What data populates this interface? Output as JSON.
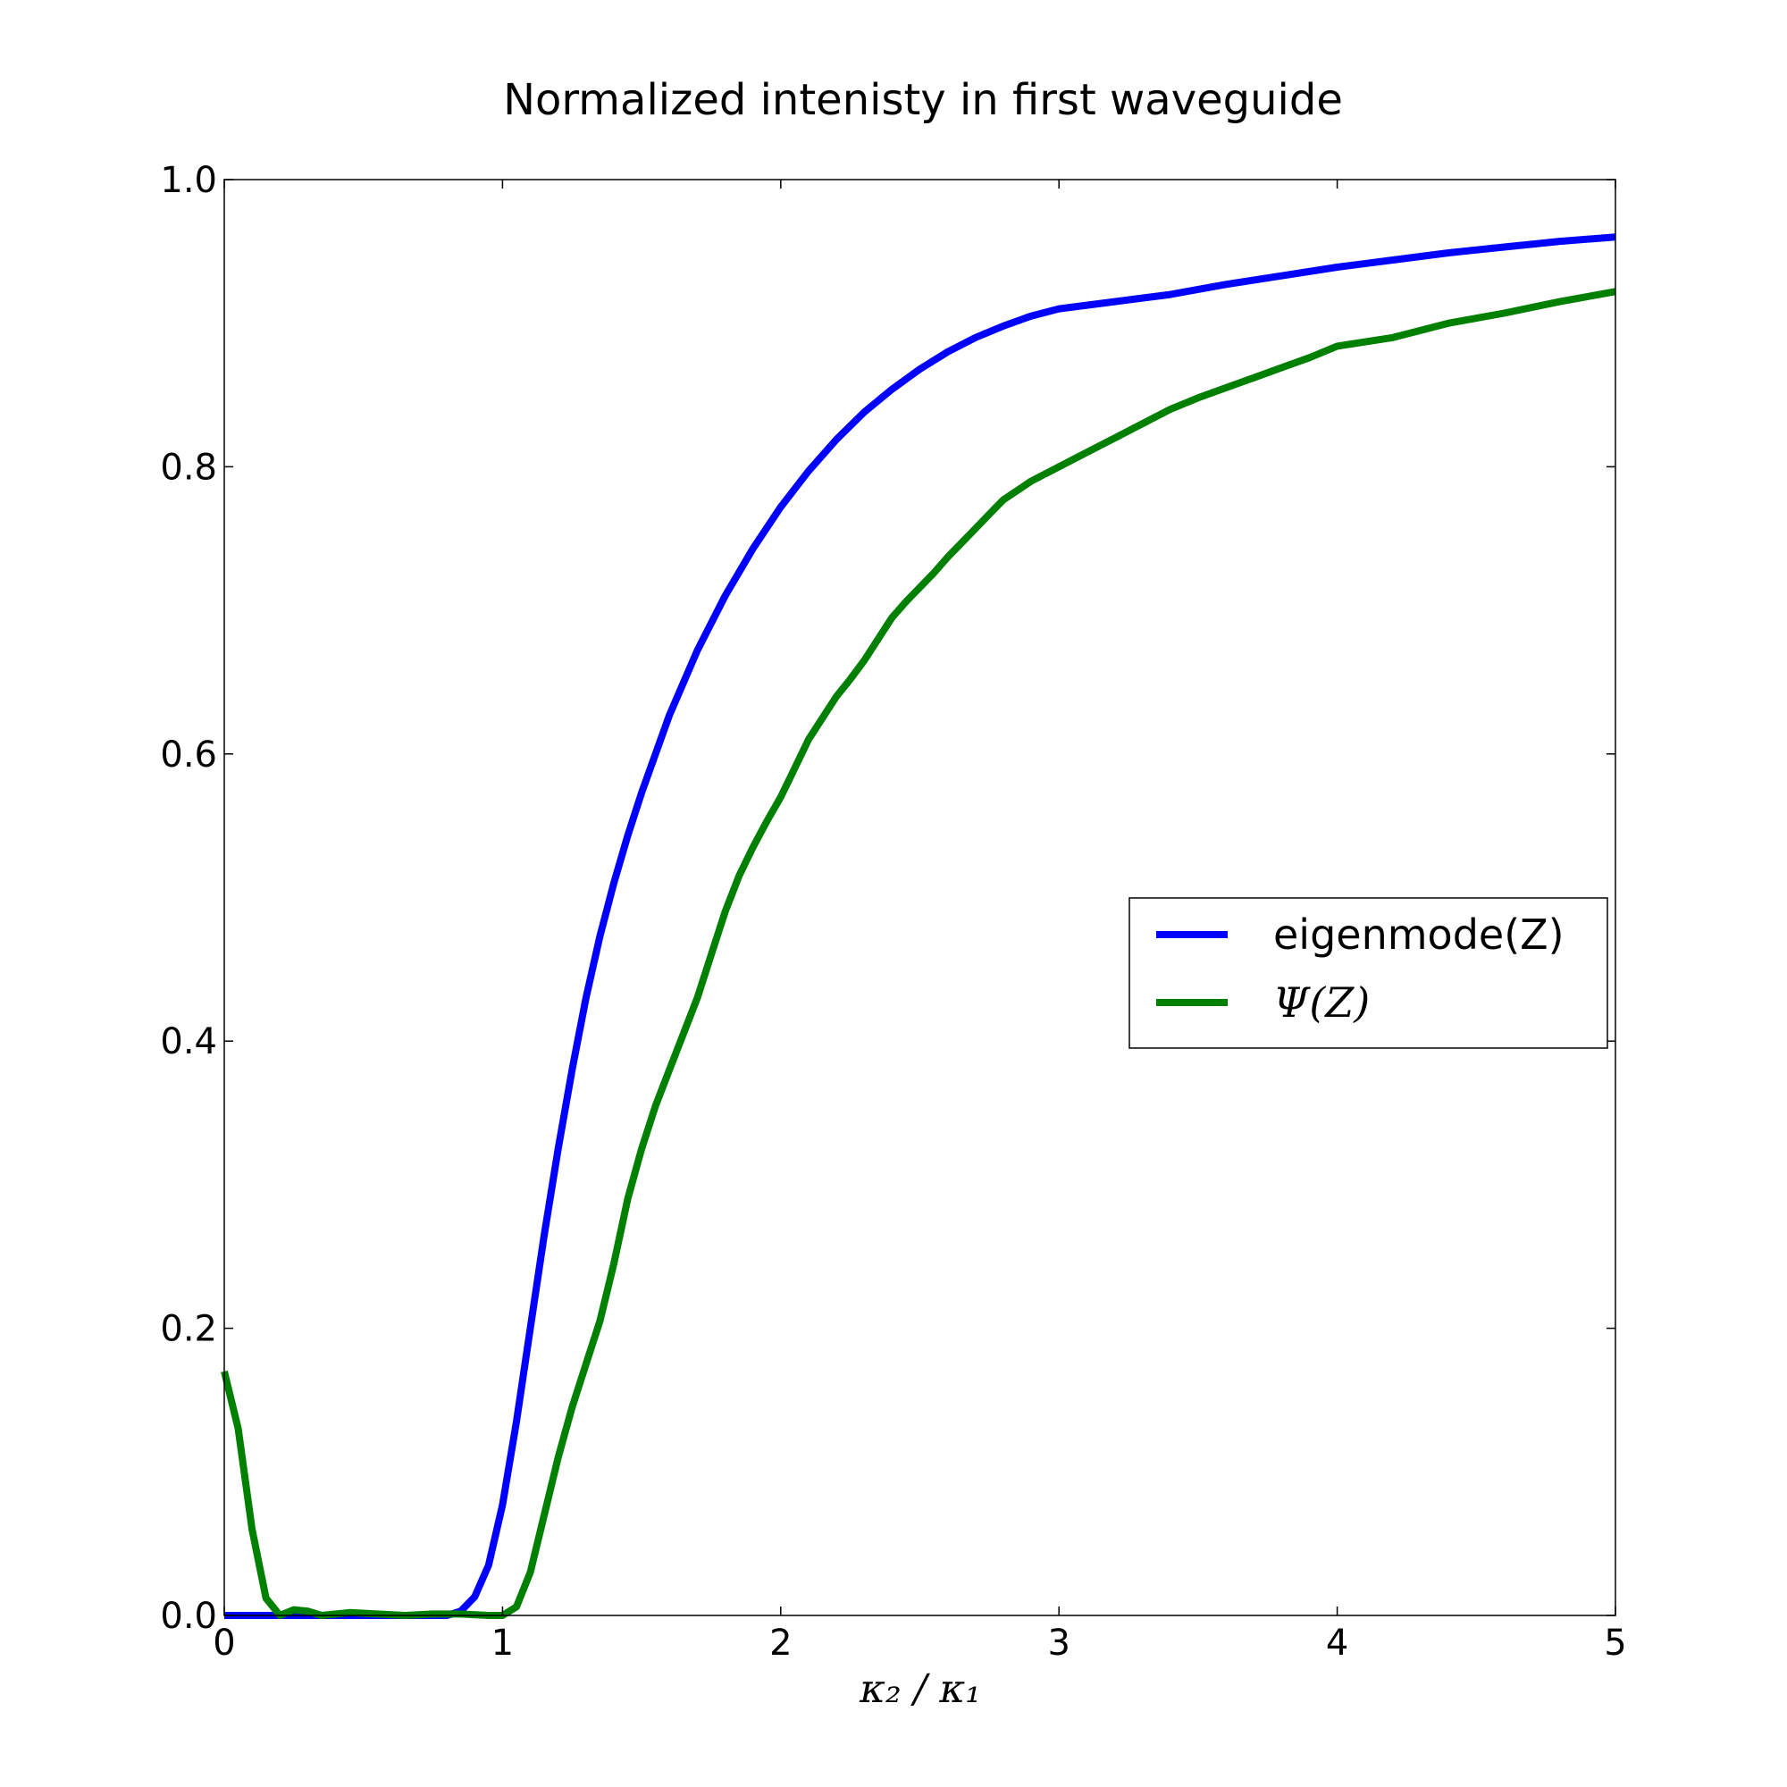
{
  "chart_data": {
    "type": "line",
    "title": "Normalized intenisty in first waveguide",
    "xlabel": "κ₂ / κ₁",
    "ylabel": "",
    "xlim": [
      0,
      5
    ],
    "ylim": [
      0,
      1.0
    ],
    "xticks": [
      "0",
      "1",
      "2",
      "3",
      "4",
      "5"
    ],
    "yticks": [
      "0.0",
      "0.2",
      "0.4",
      "0.6",
      "0.8",
      "1.0"
    ],
    "grid": false,
    "legend_position": "center-right",
    "series": [
      {
        "name": "eigenmode(Z)",
        "color": "#0000ff",
        "x": [
          0,
          0.2,
          0.4,
          0.6,
          0.8,
          0.85,
          0.9,
          0.95,
          1.0,
          1.05,
          1.1,
          1.15,
          1.2,
          1.25,
          1.3,
          1.35,
          1.4,
          1.45,
          1.5,
          1.6,
          1.7,
          1.8,
          1.9,
          2.0,
          2.1,
          2.2,
          2.3,
          2.4,
          2.5,
          2.6,
          2.7,
          2.8,
          2.9,
          3.0,
          3.2,
          3.4,
          3.6,
          3.8,
          4.0,
          4.2,
          4.4,
          4.6,
          4.8,
          5.0
        ],
        "y": [
          0.0,
          0.0,
          0.0,
          0.0,
          0.0,
          0.003,
          0.013,
          0.035,
          0.077,
          0.135,
          0.2,
          0.265,
          0.325,
          0.38,
          0.43,
          0.473,
          0.51,
          0.543,
          0.573,
          0.627,
          0.672,
          0.71,
          0.743,
          0.772,
          0.797,
          0.819,
          0.838,
          0.854,
          0.868,
          0.88,
          0.89,
          0.898,
          0.905,
          0.91,
          0.915,
          0.92,
          0.927,
          0.933,
          0.939,
          0.944,
          0.949,
          0.953,
          0.957,
          0.96
        ]
      },
      {
        "name": "Ψ(Z)",
        "color": "#008000",
        "x": [
          0,
          0.05,
          0.1,
          0.15,
          0.2,
          0.25,
          0.3,
          0.35,
          0.45,
          0.55,
          0.65,
          0.75,
          0.85,
          0.95,
          1.0,
          1.05,
          1.1,
          1.15,
          1.2,
          1.25,
          1.3,
          1.35,
          1.4,
          1.45,
          1.5,
          1.55,
          1.6,
          1.65,
          1.7,
          1.75,
          1.8,
          1.85,
          1.9,
          1.95,
          2.0,
          2.05,
          2.1,
          2.15,
          2.2,
          2.25,
          2.3,
          2.35,
          2.4,
          2.45,
          2.5,
          2.55,
          2.6,
          2.65,
          2.7,
          2.75,
          2.8,
          2.9,
          3.0,
          3.1,
          3.2,
          3.3,
          3.4,
          3.5,
          3.6,
          3.7,
          3.8,
          3.9,
          4.0,
          4.2,
          4.4,
          4.6,
          4.8,
          5.0
        ],
        "y": [
          0.17,
          0.13,
          0.06,
          0.012,
          0.0,
          0.004,
          0.003,
          0.0,
          0.002,
          0.001,
          0.0,
          0.001,
          0.001,
          0.0,
          0.0,
          0.006,
          0.03,
          0.07,
          0.11,
          0.145,
          0.175,
          0.205,
          0.245,
          0.29,
          0.325,
          0.355,
          0.38,
          0.405,
          0.43,
          0.46,
          0.49,
          0.515,
          0.535,
          0.553,
          0.57,
          0.59,
          0.61,
          0.625,
          0.64,
          0.652,
          0.665,
          0.68,
          0.695,
          0.706,
          0.716,
          0.726,
          0.737,
          0.747,
          0.757,
          0.767,
          0.777,
          0.79,
          0.8,
          0.81,
          0.82,
          0.83,
          0.84,
          0.848,
          0.855,
          0.862,
          0.869,
          0.876,
          0.884,
          0.89,
          0.9,
          0.907,
          0.915,
          0.922
        ]
      }
    ]
  }
}
